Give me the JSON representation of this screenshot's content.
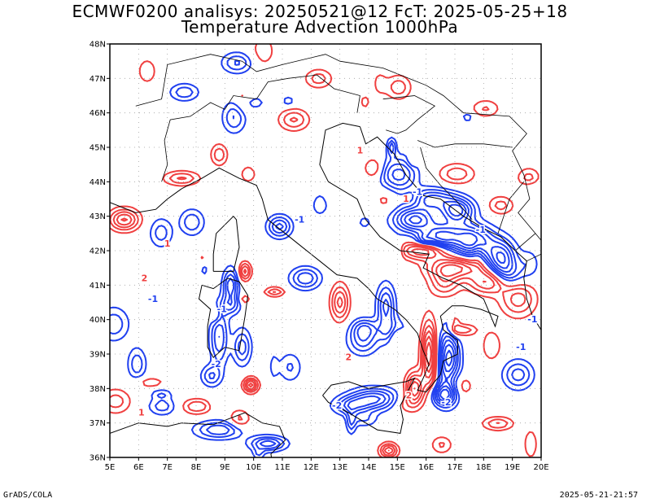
{
  "header": {
    "title_line1": "ECMWF0200 analisys: 20250521@12 FcT: 2025-05-25+18",
    "title_line2": "Temperature Advection 1000hPa"
  },
  "footer": {
    "software": "GrADS/COLA",
    "timestamp": "2025-05-21-21:57"
  },
  "map": {
    "lon_ticks": [
      "5E",
      "6E",
      "7E",
      "8E",
      "9E",
      "10E",
      "11E",
      "12E",
      "13E",
      "14E",
      "15E",
      "16E",
      "17E",
      "18E",
      "19E",
      "20E"
    ],
    "lat_ticks": [
      "36N",
      "37N",
      "38N",
      "39N",
      "40N",
      "41N",
      "42N",
      "43N",
      "44N",
      "45N",
      "46N",
      "47N",
      "48N"
    ],
    "lon_range": [
      5,
      20
    ],
    "lat_range": [
      36,
      48
    ],
    "colors": {
      "positive_contour": "#f04040",
      "negative_contour": "#2040f0",
      "coastline": "#000000",
      "grid": "#a0a0a0"
    },
    "contour_labels": [
      {
        "text": "-1",
        "lon": 19.7,
        "lat": 40.0,
        "sign": "neg"
      },
      {
        "text": "-1",
        "lon": 19.3,
        "lat": 39.2,
        "sign": "neg"
      },
      {
        "text": "-1",
        "lon": 6.5,
        "lat": 40.6,
        "sign": "neg"
      },
      {
        "text": "-1",
        "lon": 8.9,
        "lat": 40.3,
        "sign": "neg"
      },
      {
        "text": "-2",
        "lon": 8.7,
        "lat": 38.7,
        "sign": "neg"
      },
      {
        "text": "-2",
        "lon": 12.9,
        "lat": 37.5,
        "sign": "neg"
      },
      {
        "text": "-2",
        "lon": 16.7,
        "lat": 37.6,
        "sign": "neg"
      },
      {
        "text": "-1",
        "lon": 15.7,
        "lat": 43.7,
        "sign": "neg"
      },
      {
        "text": "-1",
        "lon": 17.9,
        "lat": 42.6,
        "sign": "neg"
      },
      {
        "text": "-1",
        "lon": 11.6,
        "lat": 42.9,
        "sign": "neg"
      },
      {
        "text": "1",
        "lon": 15.3,
        "lat": 43.5,
        "sign": "pos"
      },
      {
        "text": "1",
        "lon": 7.0,
        "lat": 42.2,
        "sign": "pos"
      },
      {
        "text": "1",
        "lon": 6.1,
        "lat": 37.3,
        "sign": "pos"
      },
      {
        "text": "2",
        "lon": 13.3,
        "lat": 38.9,
        "sign": "pos"
      },
      {
        "text": "2",
        "lon": 15.4,
        "lat": 37.8,
        "sign": "pos"
      },
      {
        "text": "1",
        "lon": 13.7,
        "lat": 44.9,
        "sign": "pos"
      },
      {
        "text": "2",
        "lon": 6.2,
        "lat": 41.2,
        "sign": "pos"
      }
    ]
  }
}
